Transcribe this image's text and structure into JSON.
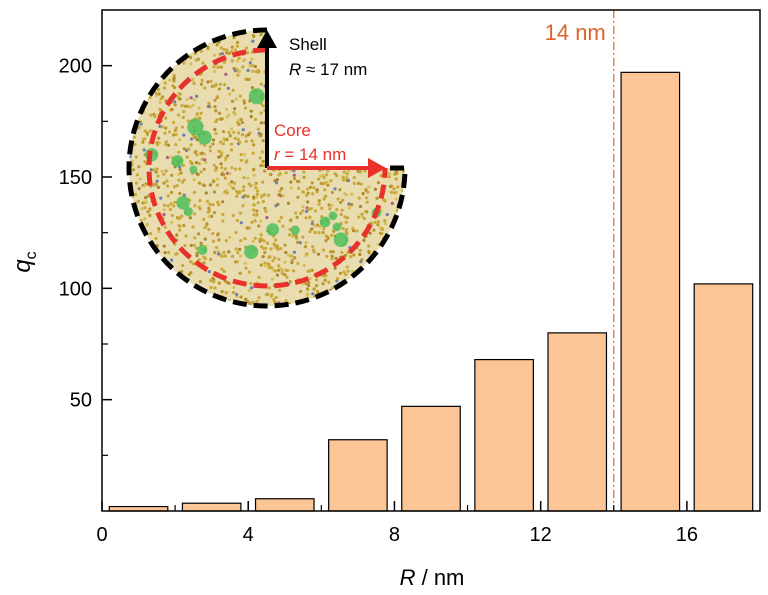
{
  "chart_data": {
    "type": "bar",
    "x": [
      1,
      3,
      5,
      7,
      9,
      11,
      13,
      15,
      17
    ],
    "values": [
      2,
      3.5,
      5.5,
      32,
      47,
      68,
      80,
      197,
      102
    ],
    "bar_width": 1.6,
    "xlabel_italic": "R",
    "xlabel_rest": " / nm",
    "ylabel_main": "q",
    "ylabel_sub": "c",
    "xlim": [
      0,
      18
    ],
    "ylim": [
      0,
      225
    ],
    "xticks": [
      0,
      4,
      8,
      12,
      16
    ],
    "yticks": [
      50,
      100,
      150,
      200
    ],
    "vline": {
      "x": 14,
      "label": "14 nm",
      "color": "#e0622a"
    },
    "bar_color": "#fcc595",
    "inset": {
      "shell_label": "Shell",
      "shell_radius_italic": "R",
      "shell_radius_rest": " ≈ 17 nm",
      "core_label": "Core",
      "core_radius_italic": "r",
      "core_radius_rest": " = 14 nm",
      "core_color": "#e8312a"
    }
  }
}
